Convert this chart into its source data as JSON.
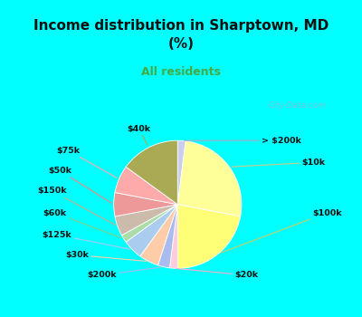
{
  "title": "Income distribution in Sharptown, MD\n(%)",
  "subtitle": "All residents",
  "title_color": "#111111",
  "subtitle_color": "#44aa44",
  "bg_top": "#00ffff",
  "bg_chart": "#d8eee0",
  "watermark": "City-Data.com",
  "labels": [
    "> $200k",
    "$10k",
    "$100k",
    "$20k",
    "$200k",
    "$30k",
    "$125k",
    "$60k",
    "$150k",
    "$50k",
    "$75k",
    "$40k"
  ],
  "values": [
    2,
    26,
    22,
    2,
    3,
    5,
    5,
    2,
    5,
    6,
    7,
    15
  ],
  "colors": [
    "#ccccee",
    "#ffff99",
    "#ffff77",
    "#ffccdd",
    "#aabbee",
    "#ffccaa",
    "#aaccee",
    "#aaddaa",
    "#ccbbaa",
    "#ee9999",
    "#ffaaaa",
    "#aaaa55"
  ],
  "startangle": 90,
  "counterclock": false
}
